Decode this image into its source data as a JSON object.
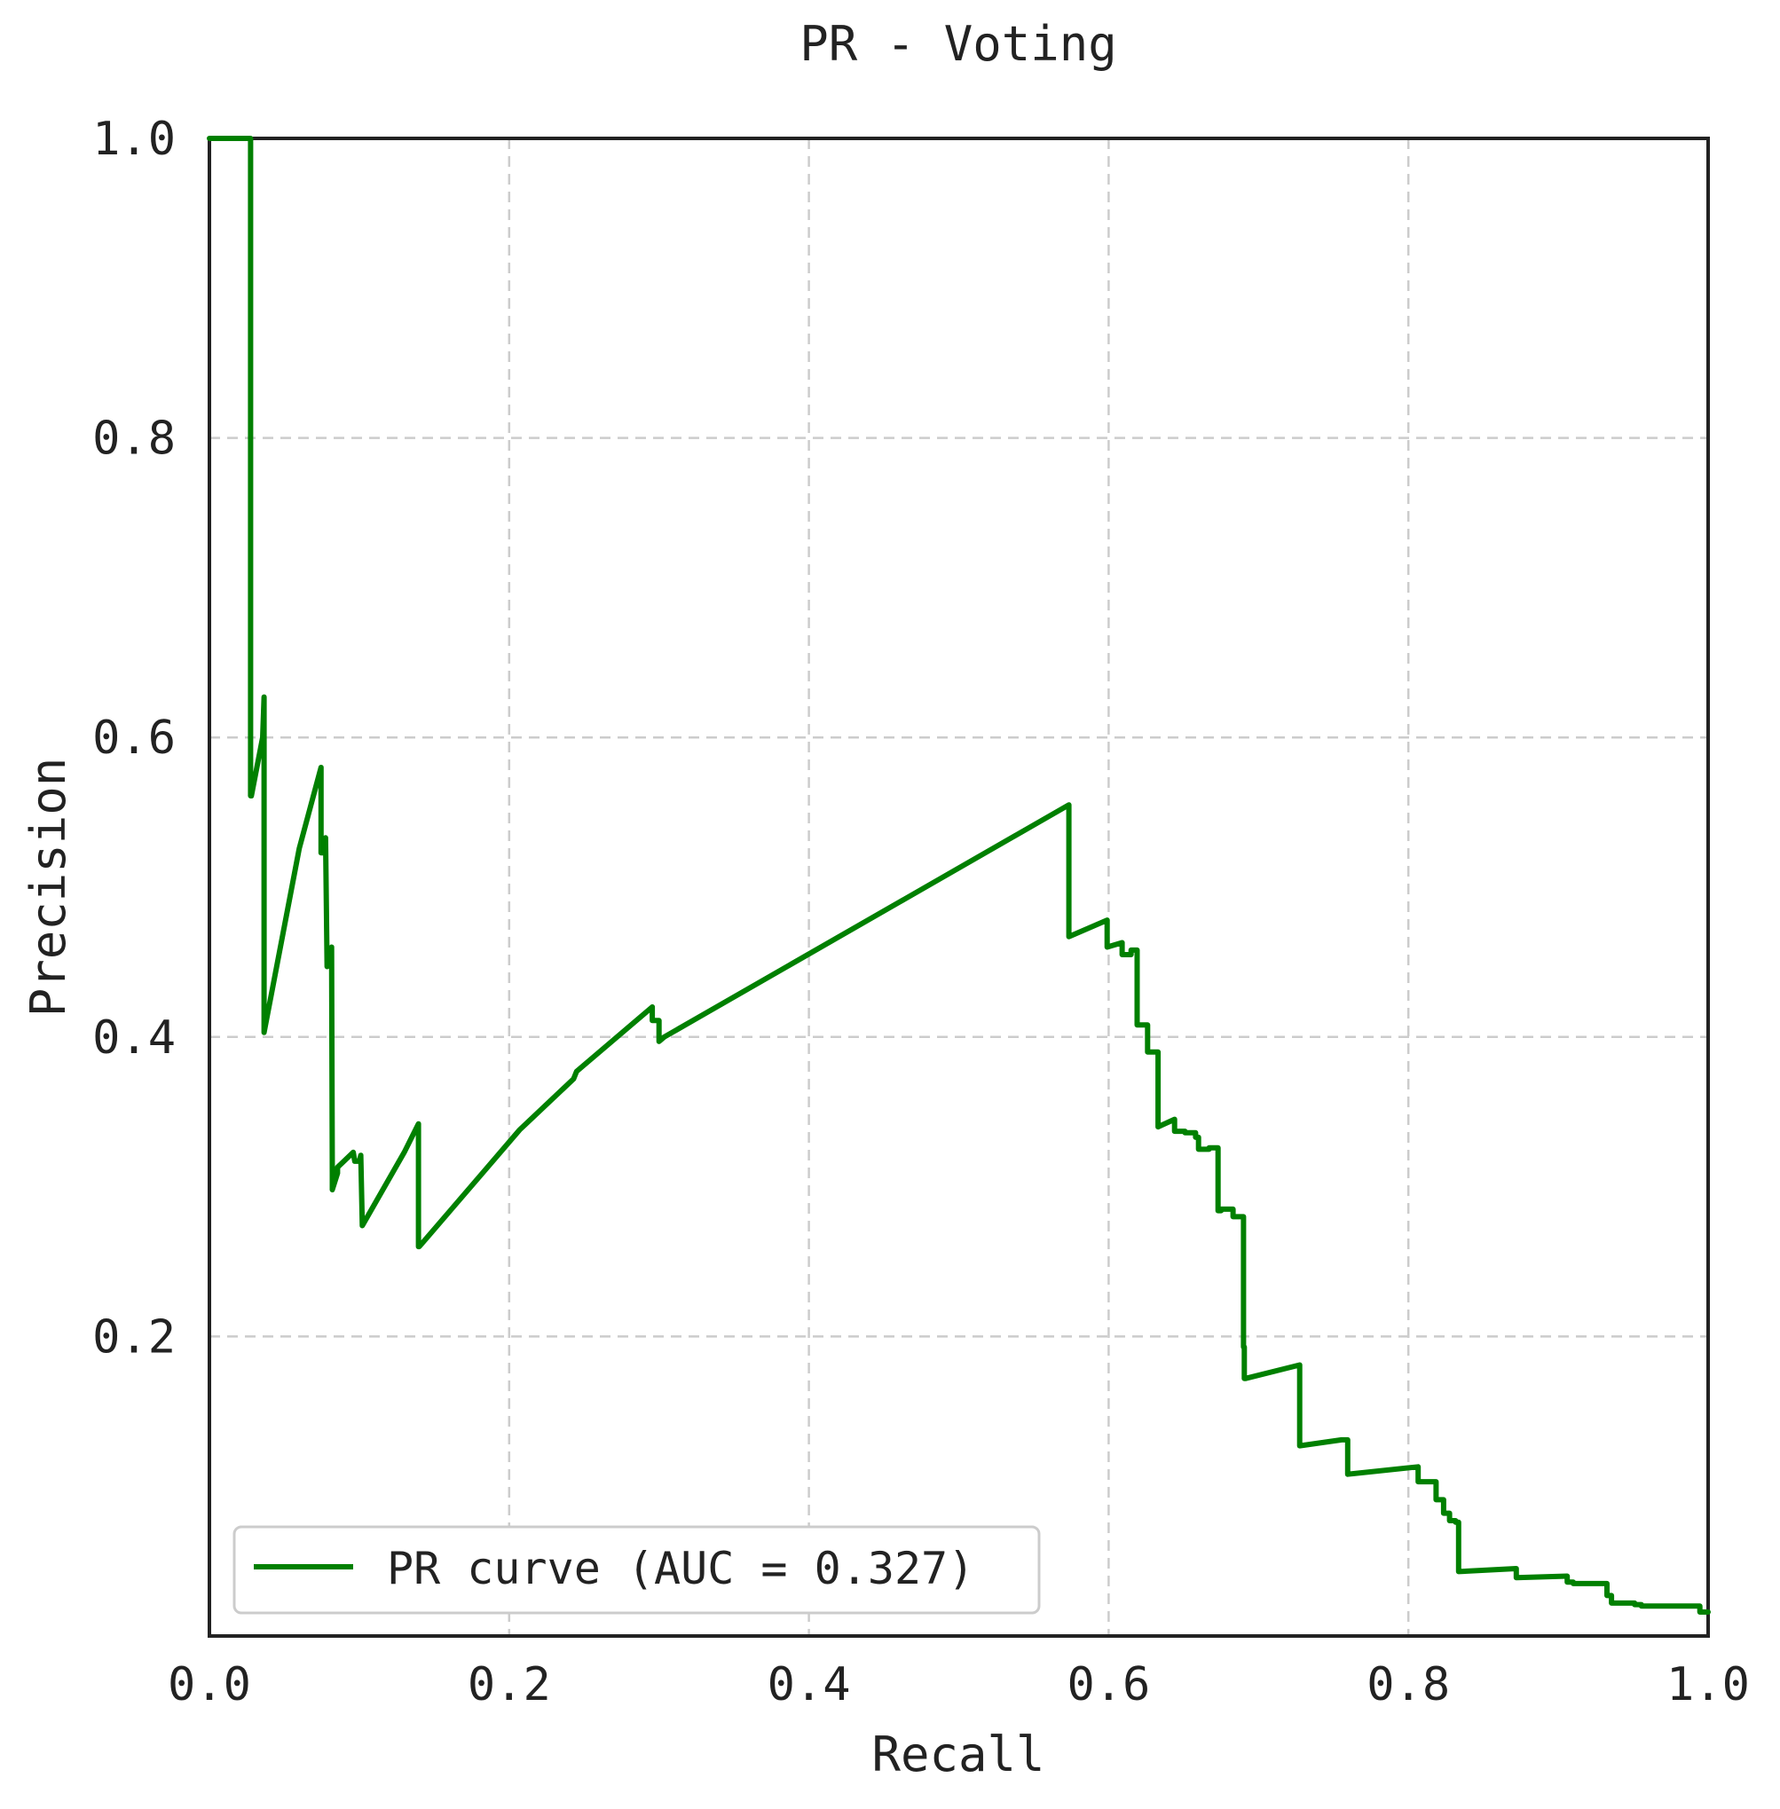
{
  "chart_data": {
    "type": "line",
    "title": "PR - Voting",
    "xlabel": "Recall",
    "ylabel": "Precision",
    "xlim": [
      0.0,
      1.0
    ],
    "ylim": [
      0.0,
      1.0
    ],
    "x_ticks": [
      "0.0",
      "0.2",
      "0.4",
      "0.6",
      "0.8",
      "1.0"
    ],
    "y_ticks": [
      "0.2",
      "0.4",
      "0.6",
      "0.8",
      "1.0"
    ],
    "grid": true,
    "legend_position": "lower-left",
    "series": [
      {
        "name": "PR curve (AUC = 0.327)",
        "color": "#008000",
        "x": [
          0.0,
          0.0275,
          0.0275,
          0.028,
          0.0355,
          0.0365,
          0.0365,
          0.0365,
          0.06,
          0.0745,
          0.0745,
          0.0775,
          0.0775,
          0.0785,
          0.0815,
          0.082,
          0.082,
          0.0855,
          0.0855,
          0.096,
          0.097,
          0.1,
          0.101,
          0.102,
          0.13,
          0.1395,
          0.1395,
          0.14,
          0.183,
          0.207,
          0.243,
          0.245,
          0.2955,
          0.2955,
          0.3,
          0.3,
          0.3035,
          0.5735,
          0.5735,
          0.599,
          0.599,
          0.609,
          0.609,
          0.615,
          0.615,
          0.619,
          0.619,
          0.626,
          0.626,
          0.633,
          0.633,
          0.644,
          0.644,
          0.651,
          0.651,
          0.658,
          0.658,
          0.66,
          0.66,
          0.667,
          0.667,
          0.673,
          0.673,
          0.675,
          0.675,
          0.683,
          0.683,
          0.69,
          0.69,
          0.6905,
          0.6905,
          0.6915,
          0.6915,
          0.7275,
          0.7275,
          0.7555,
          0.7555,
          0.7595,
          0.7595,
          0.8065,
          0.8065,
          0.8185,
          0.8185,
          0.8235,
          0.8235,
          0.8275,
          0.8275,
          0.8315,
          0.8315,
          0.8335,
          0.8335,
          0.872,
          0.872,
          0.906,
          0.906,
          0.91,
          0.91,
          0.9325,
          0.9325,
          0.9355,
          0.9355,
          0.951,
          0.951,
          0.9555,
          0.9555,
          0.973,
          0.973,
          0.9945,
          0.9945,
          1.0
        ],
        "y": [
          1.0,
          1.0,
          0.561,
          0.561,
          0.6,
          0.627,
          0.403,
          0.403,
          0.526,
          0.58,
          0.523,
          0.523,
          0.533,
          0.447,
          0.46,
          0.307,
          0.298,
          0.309,
          0.313,
          0.323,
          0.317,
          0.317,
          0.321,
          0.274,
          0.323,
          0.342,
          0.26,
          0.26,
          0.31,
          0.338,
          0.372,
          0.377,
          0.42,
          0.411,
          0.411,
          0.397,
          0.4,
          0.555,
          0.467,
          0.478,
          0.46,
          0.463,
          0.455,
          0.455,
          0.458,
          0.458,
          0.408,
          0.408,
          0.39,
          0.39,
          0.34,
          0.345,
          0.337,
          0.337,
          0.336,
          0.336,
          0.333,
          0.333,
          0.325,
          0.325,
          0.326,
          0.326,
          0.284,
          0.284,
          0.285,
          0.285,
          0.28,
          0.28,
          0.193,
          0.193,
          0.172,
          0.172,
          0.172,
          0.181,
          0.127,
          0.131,
          0.131,
          0.131,
          0.108,
          0.113,
          0.103,
          0.103,
          0.091,
          0.091,
          0.082,
          0.082,
          0.077,
          0.077,
          0.076,
          0.076,
          0.043,
          0.045,
          0.039,
          0.04,
          0.036,
          0.036,
          0.035,
          0.035,
          0.027,
          0.027,
          0.022,
          0.022,
          0.021,
          0.021,
          0.02,
          0.02,
          0.02,
          0.02,
          0.016,
          0.016
        ]
      }
    ]
  }
}
